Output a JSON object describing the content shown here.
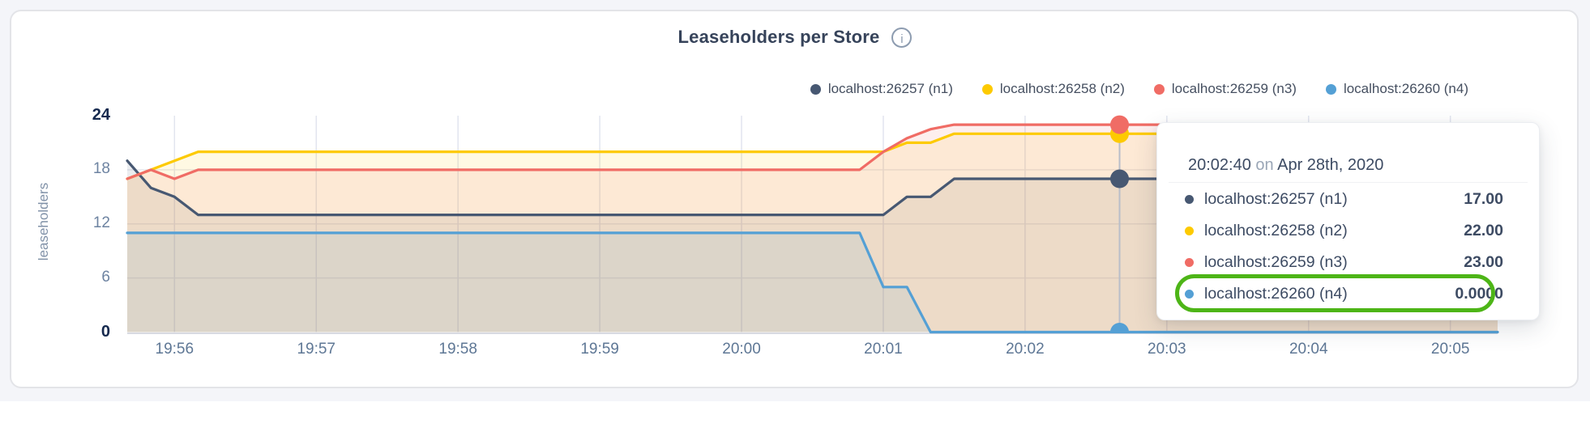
{
  "page": {
    "background_color": "#f4f5f9",
    "lower_background_color": "#ffffff"
  },
  "card": {
    "background_color": "#ffffff",
    "border_color": "#e3e4e8"
  },
  "header": {
    "title": "Leaseholders per Store"
  },
  "legend": {
    "items": [
      {
        "label": "localhost:26257 (n1)",
        "color": "#475872"
      },
      {
        "label": "localhost:26258 (n2)",
        "color": "#fdca00"
      },
      {
        "label": "localhost:26259 (n3)",
        "color": "#f06c65"
      },
      {
        "label": "localhost:26260 (n4)",
        "color": "#54a0d5"
      }
    ]
  },
  "tooltip": {
    "time": "20:02:40",
    "connector": "on",
    "date": "Apr 28th, 2020",
    "rows": [
      {
        "label": "localhost:26257 (n1)",
        "value": "17.00",
        "color": "#475872",
        "highlighted": false
      },
      {
        "label": "localhost:26258 (n2)",
        "value": "22.00",
        "color": "#fdca00",
        "highlighted": false
      },
      {
        "label": "localhost:26259 (n3)",
        "value": "23.00",
        "color": "#f06c65",
        "highlighted": false
      },
      {
        "label": "localhost:26260 (n4)",
        "value": "0.0000",
        "color": "#54a0d5",
        "highlighted": true
      }
    ],
    "highlight_color": "#4db517"
  },
  "chart_data": {
    "type": "area",
    "title": "Leaseholders per Store",
    "xlabel": "",
    "ylabel": "leaseholders",
    "ylim": [
      0,
      24
    ],
    "y_ticks": [
      24,
      18,
      12,
      6,
      0
    ],
    "grid_values": [
      6,
      12,
      18
    ],
    "x_tick_labels": [
      "19:56",
      "19:57",
      "19:58",
      "19:59",
      "20:00",
      "20:01",
      "20:02",
      "20:03",
      "20:04",
      "20:05"
    ],
    "x_tick_indices": [
      2,
      8,
      14,
      20,
      26,
      32,
      38,
      44,
      50,
      56
    ],
    "x_start_time": "19:55:40",
    "x_step_seconds": 10,
    "hover_index": 42,
    "hover_time": "20:02:40",
    "legend_position": "top-right",
    "grid": "on",
    "series": [
      {
        "name": "localhost:26257 (n1)",
        "color": "#475872",
        "values": [
          19,
          16,
          15,
          13,
          13,
          13,
          13,
          13,
          13,
          13,
          13,
          13,
          13,
          13,
          13,
          13,
          13,
          13,
          13,
          13,
          13,
          13,
          13,
          13,
          13,
          13,
          13,
          13,
          13,
          13,
          13,
          13,
          13,
          15,
          15,
          17,
          17,
          17,
          17,
          17,
          17,
          17,
          17,
          17,
          17,
          17,
          17,
          17,
          17,
          17,
          17,
          17,
          17,
          17,
          17,
          17,
          17,
          17,
          17
        ]
      },
      {
        "name": "localhost:26258 (n2)",
        "color": "#fdca00",
        "values": [
          17,
          18,
          19,
          20,
          20,
          20,
          20,
          20,
          20,
          20,
          20,
          20,
          20,
          20,
          20,
          20,
          20,
          20,
          20,
          20,
          20,
          20,
          20,
          20,
          20,
          20,
          20,
          20,
          20,
          20,
          20,
          20,
          20,
          21,
          21,
          22,
          22,
          22,
          22,
          22,
          22,
          22,
          22,
          22,
          22,
          22,
          22,
          22,
          22,
          22,
          22,
          22,
          22,
          22,
          22,
          22,
          22,
          22,
          22
        ]
      },
      {
        "name": "localhost:26259 (n3)",
        "color": "#f06c65",
        "values": [
          17,
          18,
          17,
          18,
          18,
          18,
          18,
          18,
          18,
          18,
          18,
          18,
          18,
          18,
          18,
          18,
          18,
          18,
          18,
          18,
          18,
          18,
          18,
          18,
          18,
          18,
          18,
          18,
          18,
          18,
          18,
          18,
          20,
          21.5,
          22.5,
          23,
          23,
          23,
          23,
          23,
          23,
          23,
          23,
          23,
          23,
          23,
          23,
          23,
          23,
          23,
          23,
          23,
          23,
          23,
          23,
          23,
          23,
          23,
          23
        ]
      },
      {
        "name": "localhost:26260 (n4)",
        "color": "#54a0d5",
        "values": [
          11,
          11,
          11,
          11,
          11,
          11,
          11,
          11,
          11,
          11,
          11,
          11,
          11,
          11,
          11,
          11,
          11,
          11,
          11,
          11,
          11,
          11,
          11,
          11,
          11,
          11,
          11,
          11,
          11,
          11,
          11,
          11,
          5,
          5,
          0,
          0,
          0,
          0,
          0,
          0,
          0,
          0,
          0,
          0,
          0,
          0,
          0,
          0,
          0,
          0,
          0,
          0,
          0,
          0,
          0,
          0,
          0,
          0,
          0
        ]
      }
    ]
  }
}
